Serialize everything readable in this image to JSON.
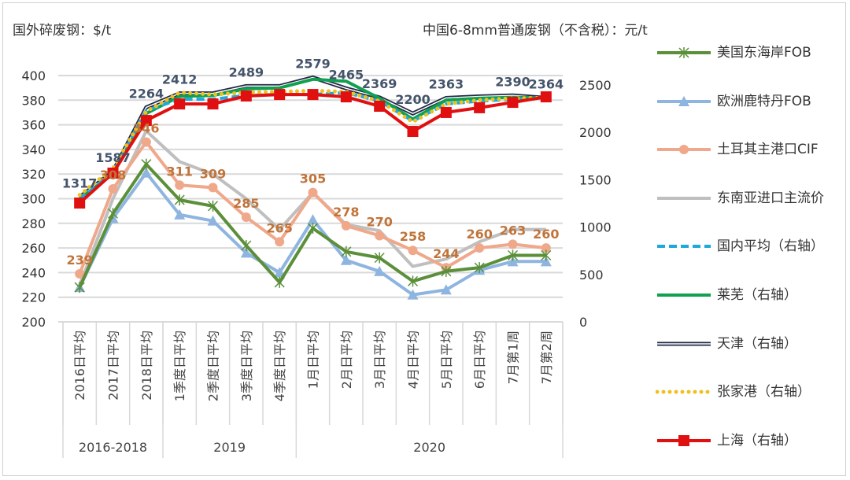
{
  "chart_data": {
    "type": "line",
    "left_axis_title": "国外碎废钢：$/t",
    "right_axis_title": "中国6-8mm普通废钢（不含税）：元/t",
    "categories": [
      "2016日平均",
      "2017日平均",
      "2018日平均",
      "1季度日平均",
      "2季度日平均",
      "3季度日平均",
      "4季度日平均",
      "1月日平均",
      "2月日平均",
      "3月日平均",
      "4月日平均",
      "5月日平均",
      "6月日平均",
      "7月第1周",
      "7月第2周"
    ],
    "groups": [
      {
        "label": "2016-2018",
        "count": 3
      },
      {
        "label": "2019",
        "count": 4
      },
      {
        "label": "2020",
        "count": 8
      }
    ],
    "left_axis": {
      "min": 200,
      "max": 400,
      "step": 20,
      "ticks": [
        "200",
        "220",
        "240",
        "260",
        "280",
        "300",
        "320",
        "340",
        "360",
        "380",
        "400"
      ]
    },
    "right_axis": {
      "min": 0,
      "max": 2600,
      "step": 500,
      "ticks": [
        "0",
        "500",
        "1000",
        "1500",
        "2000",
        "2500"
      ]
    },
    "grid": true,
    "legend_position": "right",
    "series": [
      {
        "name": "美国东海岸FOB",
        "axis": "left",
        "color": "#5b8f3a",
        "style": "solid",
        "marker": "star",
        "values": [
          228,
          288,
          328,
          299,
          294,
          262,
          232,
          276,
          257,
          252,
          233,
          241,
          244,
          254,
          254
        ]
      },
      {
        "name": "欧洲鹿特丹FOB",
        "axis": "left",
        "color": "#8eb4e0",
        "style": "solid",
        "marker": "triangle",
        "values": [
          228,
          284,
          321,
          287,
          282,
          256,
          240,
          283,
          250,
          241,
          222,
          226,
          242,
          249,
          249
        ]
      },
      {
        "name": "土耳其主港口CIF",
        "axis": "left",
        "color": "#f0a88a",
        "style": "solid",
        "marker": "circle",
        "values": [
          239,
          308,
          346,
          311,
          309,
          285,
          265,
          305,
          278,
          270,
          258,
          244,
          260,
          263,
          260
        ],
        "labels": [
          "239",
          "308",
          "346",
          "311",
          "309",
          "285",
          "265",
          "305",
          "278",
          "270",
          "258",
          "244",
          "260",
          "263",
          "260"
        ],
        "label_color": "#c0743a"
      },
      {
        "name": "东南亚进口主流价",
        "axis": "left",
        "color": "#bfbfbf",
        "style": "solid",
        "marker": "none",
        "values": [
          230,
          300,
          355,
          330,
          320,
          300,
          275,
          305,
          279,
          274,
          245,
          251,
          265,
          275,
          275
        ]
      },
      {
        "name": "国内平均（右轴）",
        "axis": "right",
        "color": "#1fa8e0",
        "style": "dashed",
        "marker": "none",
        "values": [
          1290,
          1580,
          2230,
          2350,
          2350,
          2390,
          2400,
          2400,
          2420,
          2330,
          2120,
          2300,
          2330,
          2350,
          2364
        ]
      },
      {
        "name": "莱芜（右轴）",
        "axis": "right",
        "color": "#10a050",
        "style": "solid",
        "marker": "none",
        "values": [
          1300,
          1560,
          2200,
          2380,
          2390,
          2460,
          2470,
          2560,
          2540,
          2360,
          2140,
          2340,
          2360,
          2370,
          2364
        ]
      },
      {
        "name": "天津（右轴）",
        "axis": "right",
        "color": "#1f2a44",
        "style": "double",
        "marker": "none",
        "values": [
          1317,
          1587,
          2264,
          2412,
          2412,
          2489,
          2489,
          2579,
          2465,
          2369,
          2200,
          2363,
          2380,
          2390,
          2364
        ],
        "labels": [
          "1317",
          "1587",
          "2264",
          "2412",
          "",
          "2489",
          "",
          "2579",
          "2465",
          "2369",
          "2200",
          "2363",
          "",
          "2390",
          "2364"
        ],
        "label_color": "#44546a"
      },
      {
        "name": "张家港（右轴）",
        "axis": "right",
        "color": "#f0c020",
        "style": "dotted",
        "marker": "none",
        "values": [
          1340,
          1620,
          2220,
          2420,
          2400,
          2420,
          2430,
          2440,
          2430,
          2330,
          2110,
          2300,
          2340,
          2360,
          2364
        ]
      },
      {
        "name": "上海（右轴）",
        "axis": "right",
        "color": "#e01010",
        "style": "solid",
        "marker": "square",
        "values": [
          1254,
          1570,
          2126,
          2300,
          2300,
          2384,
          2400,
          2400,
          2375,
          2276,
          2010,
          2210,
          2260,
          2317,
          2375
        ]
      }
    ]
  }
}
